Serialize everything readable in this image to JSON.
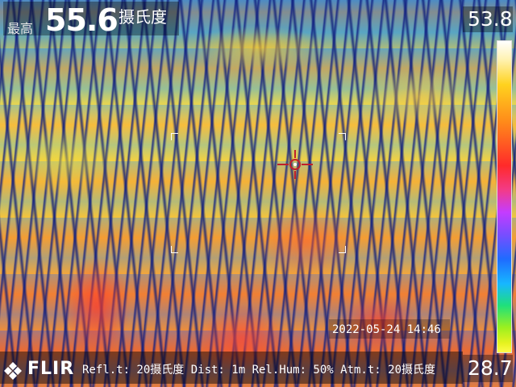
{
  "overlay": {
    "max_label": "最高",
    "max_value": "55.6",
    "max_unit": "摄氏度",
    "scale_max": "53.8",
    "scale_min": "28.7",
    "timestamp": "2022-05-24  14:46",
    "params": "Refl.t: 20摄氏度 Dist: 1m Rel.Hum: 50% Atm.t: 20摄氏度",
    "logo": "FLIR"
  },
  "icons": {
    "logo_icon": "flir-diamond-icon",
    "crosshair": "crosshair-icon"
  },
  "colors": {
    "hotspot": "#c0202a",
    "overlay_text": "#ffffff"
  }
}
